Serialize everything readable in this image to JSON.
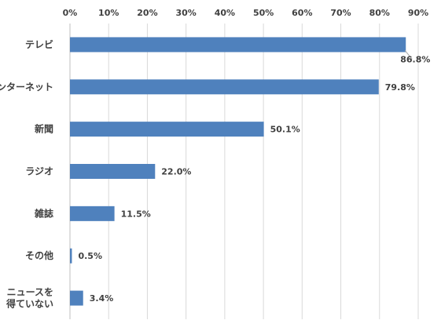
{
  "chart_data": {
    "type": "bar",
    "orientation": "horizontal",
    "categories": [
      "テレビ",
      "インターネット",
      "新聞",
      "ラジオ",
      "雑誌",
      "その他",
      "ニュースを\n得ていない"
    ],
    "values": [
      86.8,
      79.8,
      50.1,
      22.0,
      11.5,
      0.5,
      3.4
    ],
    "value_labels": [
      "86.8%",
      "79.8%",
      "50.1%",
      "22.0%",
      "11.5%",
      "0.5%",
      "3.4%"
    ],
    "x_ticks": [
      "0%",
      "10%",
      "20%",
      "30%",
      "40%",
      "50%",
      "60%",
      "70%",
      "80%",
      "90%"
    ],
    "xlim": [
      0,
      90
    ],
    "x_axis_position": "top",
    "grid": true,
    "bar_color": "#4F81BD",
    "grid_color": "#D9D9D9",
    "title": "",
    "xlabel": "",
    "ylabel": ""
  }
}
